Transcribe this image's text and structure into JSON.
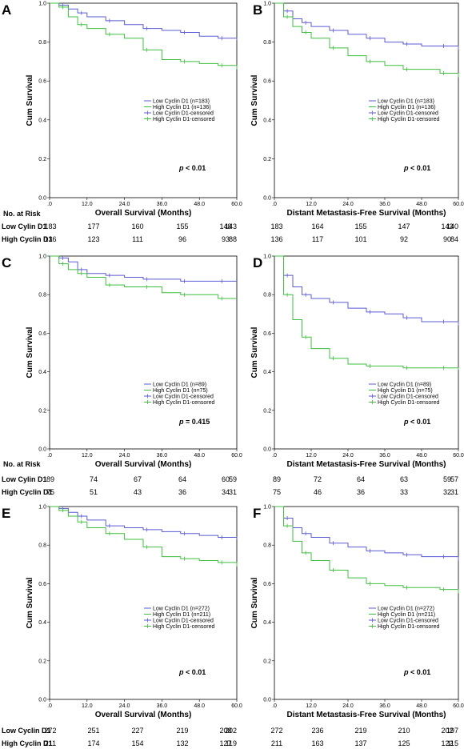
{
  "chart_data": [
    {
      "type": "line",
      "panel_label": "A",
      "xlabel": "Overall Survival (Months)",
      "ylabel": "Cum Survival",
      "xlim": [
        0,
        60
      ],
      "ylim": [
        0,
        1.0
      ],
      "xticks": [
        ".0",
        "12.0",
        "24.0",
        "36.0",
        "48.0",
        "60.0"
      ],
      "yticks": [
        "0.0",
        "0.2",
        "0.4",
        "0.6",
        "0.8",
        "1.0"
      ],
      "p_value": "< 0.01",
      "legend": [
        "Low Cyclin D1 (n=183)",
        "High Cyclin D1 (n=136)",
        "Low Cyclin D1-censored",
        "High Cyclin D1-censored"
      ],
      "series": [
        {
          "name": "Low Cyclin D1 (n=183)",
          "color": "#5b5bd6",
          "x": [
            0,
            3,
            6,
            9,
            12,
            18,
            24,
            30,
            36,
            42,
            48,
            54,
            60
          ],
          "y": [
            1.0,
            0.99,
            0.97,
            0.95,
            0.93,
            0.91,
            0.89,
            0.87,
            0.86,
            0.85,
            0.83,
            0.82,
            0.81
          ]
        },
        {
          "name": "High Cyclin D1 (n=136)",
          "color": "#3fbf3f",
          "x": [
            0,
            3,
            6,
            9,
            12,
            18,
            24,
            30,
            36,
            42,
            48,
            54,
            60
          ],
          "y": [
            1.0,
            0.98,
            0.93,
            0.89,
            0.87,
            0.84,
            0.82,
            0.76,
            0.71,
            0.7,
            0.69,
            0.68,
            0.66
          ]
        }
      ],
      "risk_table": {
        "header": "No. at Risk",
        "rows": [
          {
            "label": "Low Cylin D1",
            "values": [
              "183",
              "177",
              "160",
              "155",
              "148",
              "143"
            ]
          },
          {
            "label": "High Cyclin D1",
            "values": [
              "136",
              "123",
              "111",
              "96",
              "93",
              "88"
            ]
          }
        ]
      }
    },
    {
      "type": "line",
      "panel_label": "B",
      "xlabel": "Distant Metastasis-Free Survival (Months)",
      "ylabel": "Cum Survival",
      "xlim": [
        0,
        60
      ],
      "ylim": [
        0,
        1.0
      ],
      "xticks": [
        ".0",
        "12.0",
        "24.0",
        "36.0",
        "48.0",
        "60.0"
      ],
      "yticks": [
        "0.0",
        "0.2",
        "0.4",
        "0.6",
        "0.8",
        "1.0"
      ],
      "p_value": "< 0.01",
      "legend": [
        "Low Cyclin D1 (n=183)",
        "High Cyclin D1 (n=136)",
        "Low Cyclin D1-censored",
        "High Cyclin D1-censored"
      ],
      "series": [
        {
          "name": "Low Cyclin D1 (n=183)",
          "color": "#5b5bd6",
          "x": [
            0,
            3,
            6,
            9,
            12,
            18,
            24,
            30,
            36,
            42,
            48,
            54,
            60
          ],
          "y": [
            1.0,
            0.96,
            0.92,
            0.9,
            0.88,
            0.86,
            0.84,
            0.82,
            0.8,
            0.79,
            0.78,
            0.78,
            0.76
          ]
        },
        {
          "name": "High Cyclin D1 (n=136)",
          "color": "#3fbf3f",
          "x": [
            0,
            3,
            6,
            9,
            12,
            18,
            24,
            30,
            36,
            42,
            48,
            54,
            60
          ],
          "y": [
            1.0,
            0.93,
            0.88,
            0.85,
            0.82,
            0.77,
            0.73,
            0.7,
            0.68,
            0.66,
            0.66,
            0.64,
            0.62
          ]
        }
      ],
      "risk_table": {
        "header": "",
        "rows": [
          {
            "label": "",
            "values": [
              "183",
              "164",
              "155",
              "147",
              "143",
              "140"
            ]
          },
          {
            "label": "",
            "values": [
              "136",
              "117",
              "101",
              "92",
              "90",
              "84"
            ]
          }
        ]
      }
    },
    {
      "type": "line",
      "panel_label": "C",
      "xlabel": "Overall Survival (Months)",
      "ylabel": "Cum Survival",
      "xlim": [
        0,
        60
      ],
      "ylim": [
        0,
        1.0
      ],
      "xticks": [
        ".0",
        "12.0",
        "24.0",
        "36.0",
        "48.0",
        "60.0"
      ],
      "yticks": [
        "0.0",
        "0.2",
        "0.4",
        "0.6",
        "0.8",
        "1.0"
      ],
      "p_value": "= 0.415",
      "legend": [
        "Low Cyclin D1 (n=89)",
        "High Cyclin D1 (n=75)",
        "Low Cyclin D1-censored",
        "High Cyclin D1-censored"
      ],
      "series": [
        {
          "name": "Low Cyclin D1 (n=89)",
          "color": "#5b5bd6",
          "x": [
            0,
            3,
            6,
            9,
            12,
            18,
            24,
            30,
            36,
            42,
            48,
            54,
            60
          ],
          "y": [
            1.0,
            0.99,
            0.97,
            0.93,
            0.91,
            0.9,
            0.89,
            0.88,
            0.88,
            0.87,
            0.87,
            0.87,
            0.87
          ]
        },
        {
          "name": "High Cyclin D1 (n=75)",
          "color": "#3fbf3f",
          "x": [
            0,
            3,
            6,
            9,
            12,
            18,
            24,
            30,
            36,
            42,
            48,
            54,
            60
          ],
          "y": [
            1.0,
            0.96,
            0.93,
            0.91,
            0.89,
            0.85,
            0.84,
            0.84,
            0.81,
            0.8,
            0.8,
            0.78,
            0.78
          ]
        }
      ],
      "risk_table": {
        "header": "No. at Risk",
        "rows": [
          {
            "label": "Low Cylin D1",
            "values": [
              "89",
              "74",
              "67",
              "64",
              "60",
              "59"
            ]
          },
          {
            "label": "High Cyclin D1",
            "values": [
              "75",
              "51",
              "43",
              "36",
              "34",
              "31"
            ]
          }
        ]
      }
    },
    {
      "type": "line",
      "panel_label": "D",
      "xlabel": "Distant Metastasis-Free Survival (Months)",
      "ylabel": "Cum Survival",
      "xlim": [
        0,
        60
      ],
      "ylim": [
        0,
        1.0
      ],
      "xticks": [
        ".0",
        "12.0",
        "24.0",
        "36.0",
        "48.0",
        "60.0"
      ],
      "yticks": [
        "0.0",
        "0.2",
        "0.4",
        "0.6",
        "0.8",
        "1.0"
      ],
      "p_value": "< 0.01",
      "legend": [
        "Low Cyclin D1 (n=89)",
        "High Cyclin D1 (n=75)",
        "Low Cyclin D1-censored",
        "High Cyclin D1-censored"
      ],
      "series": [
        {
          "name": "Low Cyclin D1 (n=89)",
          "color": "#5b5bd6",
          "x": [
            0,
            3,
            6,
            9,
            12,
            18,
            24,
            30,
            36,
            42,
            48,
            54,
            60
          ],
          "y": [
            1.0,
            0.9,
            0.84,
            0.8,
            0.78,
            0.76,
            0.73,
            0.71,
            0.7,
            0.68,
            0.66,
            0.66,
            0.64
          ]
        },
        {
          "name": "High Cyclin D1 (n=75)",
          "color": "#3fbf3f",
          "x": [
            0,
            3,
            6,
            9,
            12,
            18,
            24,
            30,
            36,
            42,
            48,
            54,
            60
          ],
          "y": [
            1.0,
            0.8,
            0.67,
            0.58,
            0.52,
            0.47,
            0.44,
            0.43,
            0.43,
            0.42,
            0.42,
            0.42,
            0.41
          ]
        }
      ],
      "risk_table": {
        "header": "",
        "rows": [
          {
            "label": "",
            "values": [
              "89",
              "72",
              "64",
              "63",
              "59",
              "57"
            ]
          },
          {
            "label": "",
            "values": [
              "75",
              "46",
              "36",
              "33",
              "32",
              "31"
            ]
          }
        ]
      }
    },
    {
      "type": "line",
      "panel_label": "E",
      "xlabel": "Overall Survival (Months)",
      "ylabel": "Cum Survival",
      "xlim": [
        0,
        60
      ],
      "ylim": [
        0,
        1.0
      ],
      "xticks": [
        ".0",
        "12.0",
        "24.0",
        "36.0",
        "48.0",
        "60.0"
      ],
      "yticks": [
        "0.0",
        "0.2",
        "0.4",
        "0.6",
        "0.8",
        "1.0"
      ],
      "p_value": "< 0.01",
      "legend": [
        "Low Cyclin D1 (n=272)",
        "High Cyclin D1 (n=211)",
        "Low Cyclin D1-censored",
        "High Cyclin D1-censored"
      ],
      "series": [
        {
          "name": "Low Cyclin D1 (n=272)",
          "color": "#5b5bd6",
          "x": [
            0,
            3,
            6,
            9,
            12,
            18,
            24,
            30,
            36,
            42,
            48,
            54,
            60
          ],
          "y": [
            1.0,
            0.99,
            0.97,
            0.95,
            0.93,
            0.9,
            0.89,
            0.88,
            0.87,
            0.86,
            0.85,
            0.84,
            0.83
          ]
        },
        {
          "name": "High Cyclin D1 (n=211)",
          "color": "#3fbf3f",
          "x": [
            0,
            3,
            6,
            9,
            12,
            18,
            24,
            30,
            36,
            42,
            48,
            54,
            60
          ],
          "y": [
            1.0,
            0.98,
            0.95,
            0.92,
            0.89,
            0.86,
            0.83,
            0.79,
            0.74,
            0.73,
            0.72,
            0.71,
            0.69
          ]
        }
      ],
      "risk_table": {
        "header": "",
        "rows": [
          {
            "label": "Low Cyclin D1",
            "values": [
              "272",
              "251",
              "227",
              "219",
              "208",
              "202"
            ]
          },
          {
            "label": "High Cyclin D1",
            "values": [
              "211",
              "174",
              "154",
              "132",
              "127",
              "119"
            ]
          }
        ]
      }
    },
    {
      "type": "line",
      "panel_label": "F",
      "xlabel": "Distant Metastasis-Free Survival (Months)",
      "ylabel": "Cum Survival",
      "xlim": [
        0,
        60
      ],
      "ylim": [
        0,
        1.0
      ],
      "xticks": [
        ".0",
        "12.0",
        "24.0",
        "36.0",
        "48.0",
        "60.0"
      ],
      "yticks": [
        "0.0",
        "0.2",
        "0.4",
        "0.6",
        "0.8",
        "1.0"
      ],
      "p_value": "< 0.01",
      "legend": [
        "Low Cyclin D1 (n=272)",
        "High Cyclin D1 (n=211)",
        "Low Cyclin D1-censored",
        "High Cyclin D1-censored"
      ],
      "series": [
        {
          "name": "Low Cyclin D1 (n=272)",
          "color": "#5b5bd6",
          "x": [
            0,
            3,
            6,
            9,
            12,
            18,
            24,
            30,
            36,
            42,
            48,
            54,
            60
          ],
          "y": [
            1.0,
            0.94,
            0.89,
            0.86,
            0.84,
            0.81,
            0.79,
            0.77,
            0.76,
            0.75,
            0.74,
            0.74,
            0.72
          ]
        },
        {
          "name": "High Cyclin D1 (n=211)",
          "color": "#3fbf3f",
          "x": [
            0,
            3,
            6,
            9,
            12,
            18,
            24,
            30,
            36,
            42,
            48,
            54,
            60
          ],
          "y": [
            1.0,
            0.9,
            0.82,
            0.76,
            0.72,
            0.67,
            0.63,
            0.6,
            0.59,
            0.58,
            0.58,
            0.57,
            0.55
          ]
        }
      ],
      "risk_table": {
        "header": "",
        "rows": [
          {
            "label": "",
            "values": [
              "272",
              "236",
              "219",
              "210",
              "202",
              "197"
            ]
          },
          {
            "label": "",
            "values": [
              "211",
              "163",
              "137",
              "125",
              "122",
              "115"
            ]
          }
        ]
      }
    }
  ]
}
